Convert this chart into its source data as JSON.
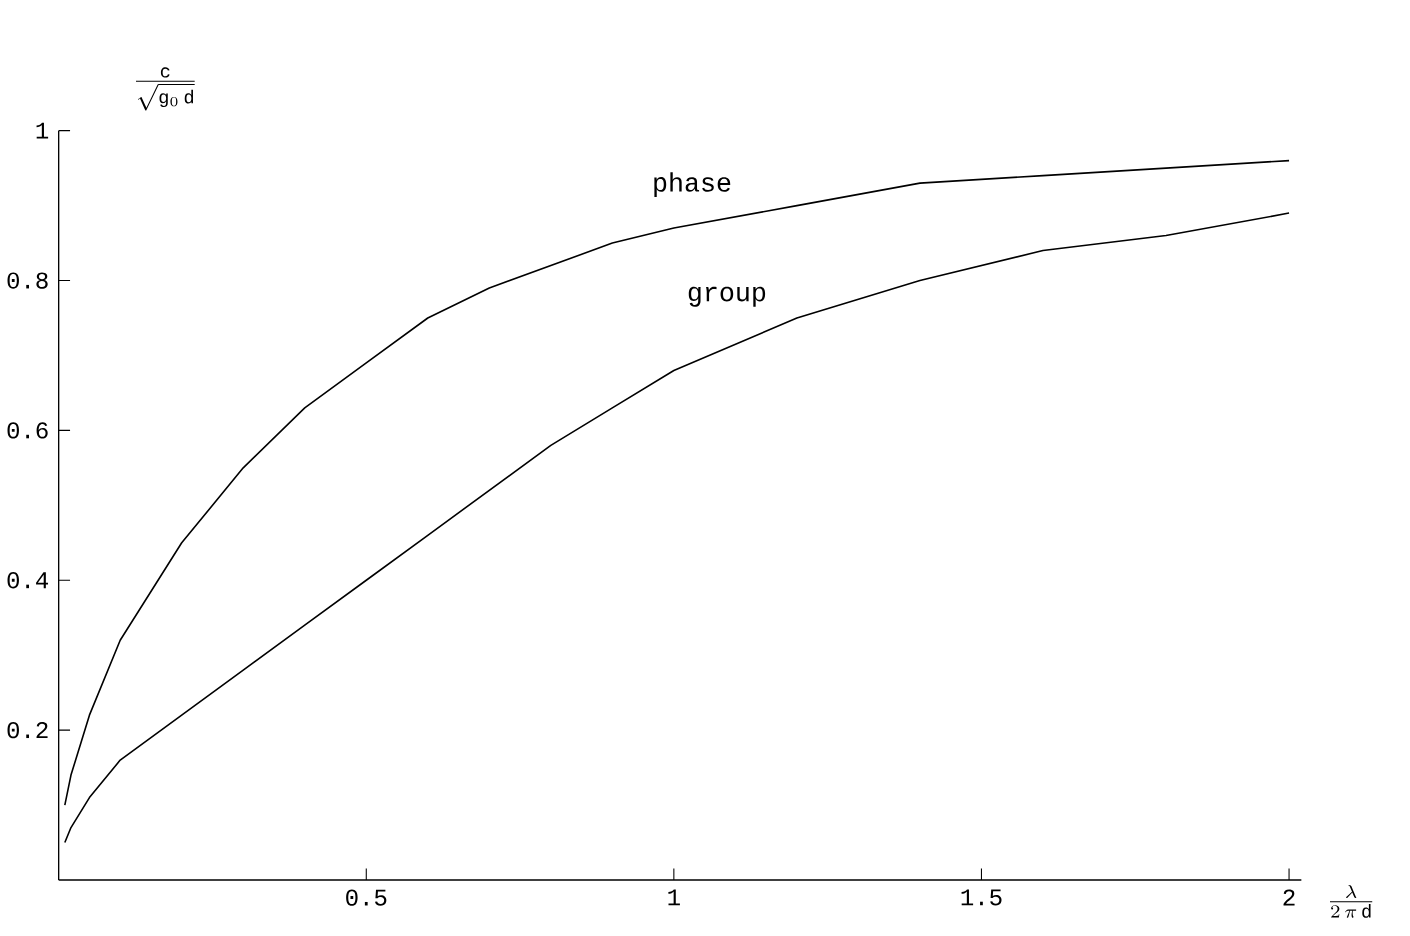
{
  "chart_data": {
    "type": "line",
    "xlabel": "\\frac{\\lambda}{2\\,\\pi\\,\\mathrm{d}}",
    "ylabel": "\\frac{\\mathrm{c}}{\\sqrt{\\mathrm{g}_0\\,\\mathrm{d}}}",
    "x": [
      0.01,
      0.02,
      0.05,
      0.1,
      0.2,
      0.3,
      0.4,
      0.5,
      0.6,
      0.7,
      0.8,
      0.9,
      1,
      1.2,
      1.4,
      1.6,
      1.8,
      2
    ],
    "series": [
      {
        "name": "phase",
        "color": "#000000",
        "values": [
          0.1,
          0.14,
          0.22,
          0.32,
          0.45,
          0.55,
          0.63,
          0.69,
          0.75,
          0.79,
          0.82,
          0.85,
          0.87,
          0.9,
          0.93,
          0.94,
          0.95,
          0.96
        ]
      },
      {
        "name": "group",
        "color": "#000000",
        "values": [
          0.05,
          0.07,
          0.11,
          0.16,
          0.22,
          0.28,
          0.34,
          0.4,
          0.46,
          0.52,
          0.58,
          0.63,
          0.68,
          0.75,
          0.8,
          0.84,
          0.86,
          0.89
        ]
      }
    ],
    "xlim": [
      0,
      2.02
    ],
    "ylim": [
      0,
      1
    ],
    "xticks": [
      0.5,
      1,
      1.5,
      2
    ],
    "yticks": [
      0.2,
      0.4,
      0.6,
      0.8,
      1
    ]
  }
}
